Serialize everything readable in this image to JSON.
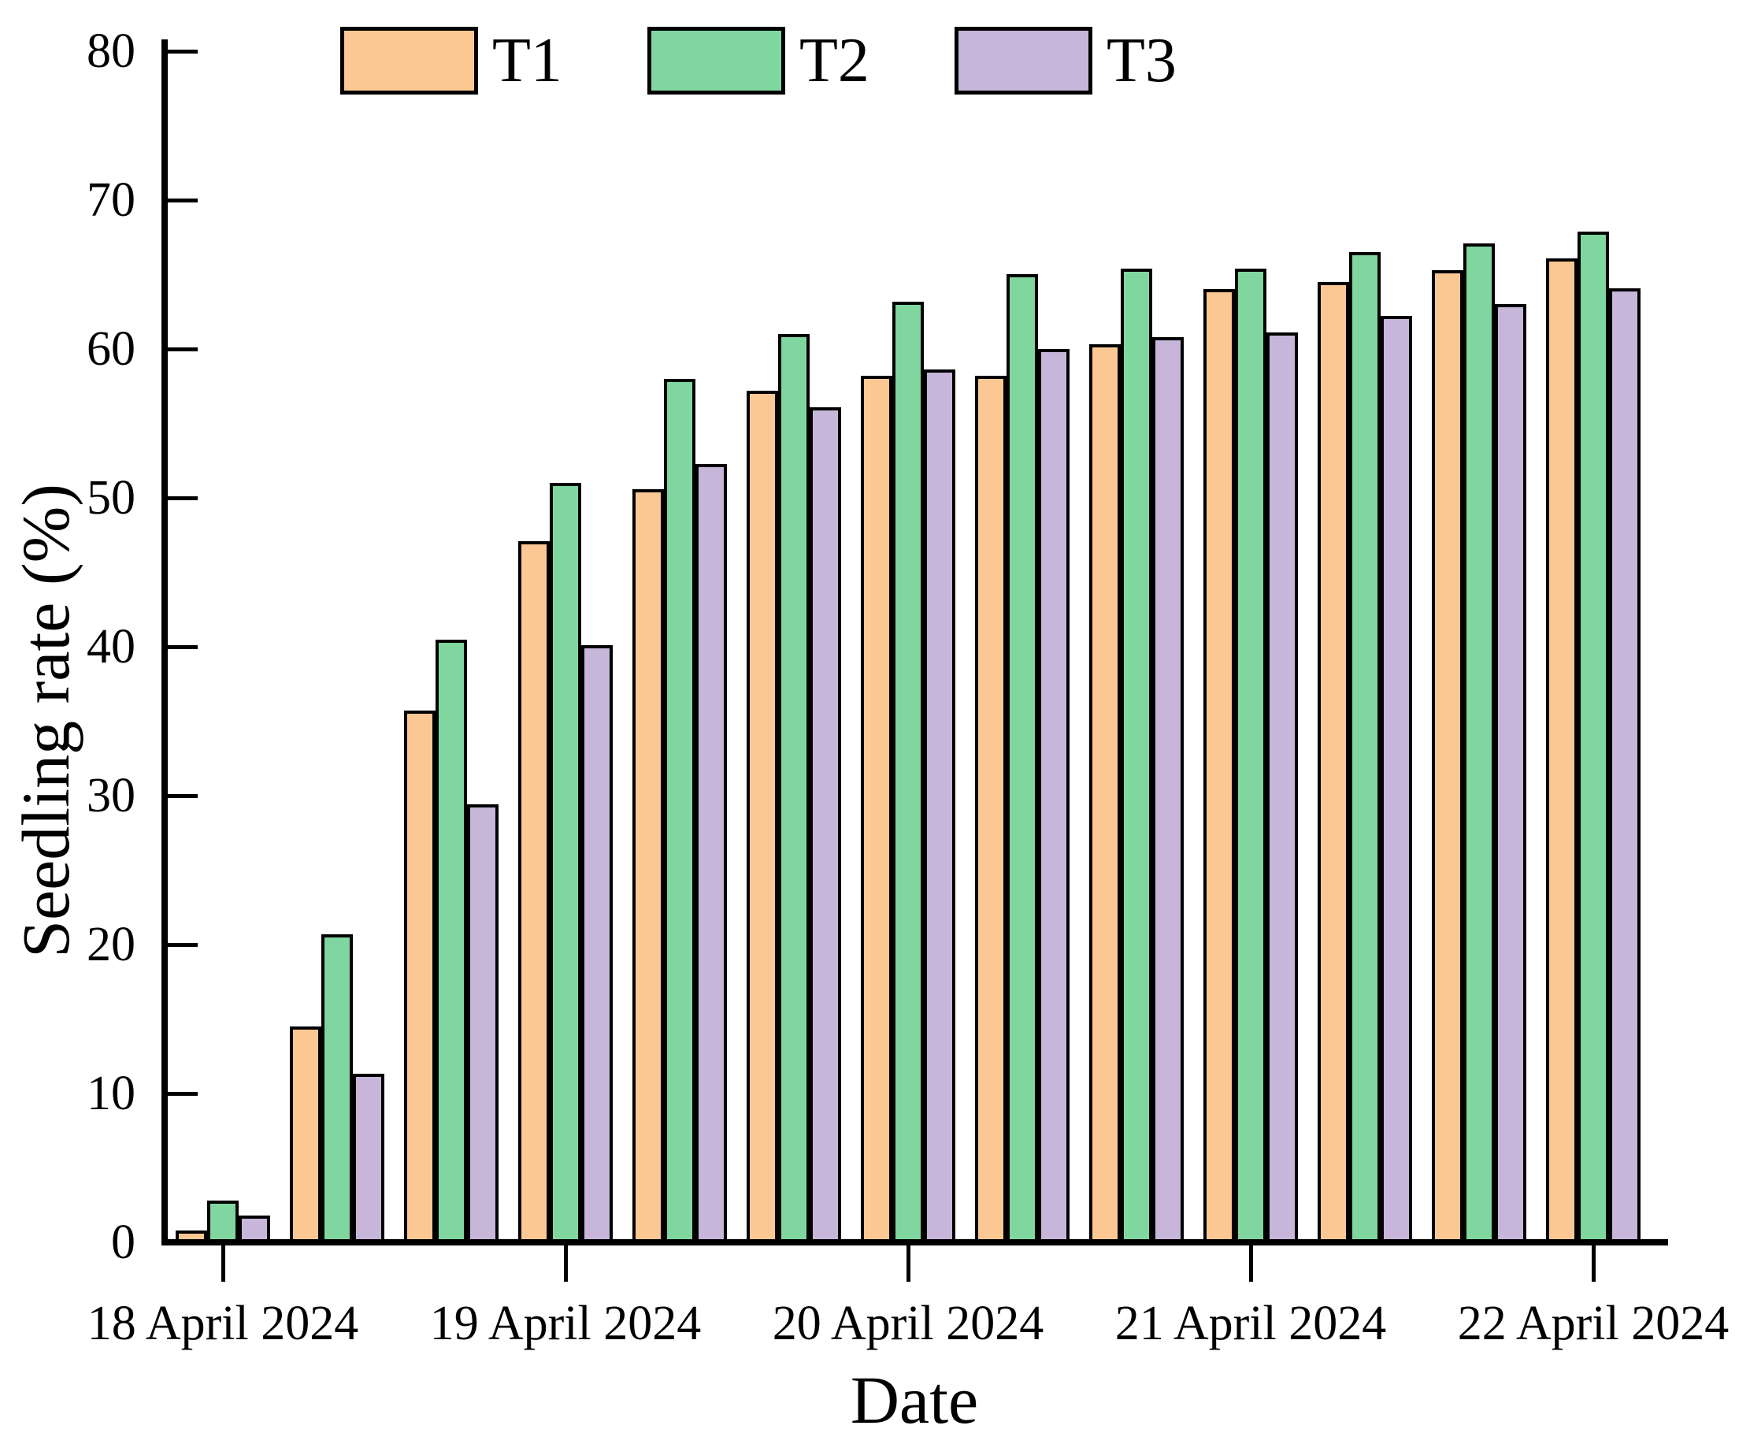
{
  "chart_data": {
    "type": "bar",
    "title": "",
    "xlabel": "Date",
    "ylabel": "Seedling rate (%)",
    "ylim": [
      0,
      80
    ],
    "ytick_step": 10,
    "y_ticks": [
      "0",
      "10",
      "20",
      "30",
      "40",
      "50",
      "60",
      "70",
      "80"
    ],
    "grid": false,
    "legend_position": "top-inside",
    "n_groups": 13,
    "groups_per_day": 3,
    "x_tick_labels": [
      {
        "group_index": 0,
        "label": "18 April 2024"
      },
      {
        "group_index": 3,
        "label": "19 April 2024"
      },
      {
        "group_index": 6,
        "label": "20 April 2024"
      },
      {
        "group_index": 9,
        "label": "21 April 2024"
      },
      {
        "group_index": 12,
        "label": "22 April 2024"
      }
    ],
    "bar_border_color": "#000000",
    "series": [
      {
        "name": "T1",
        "color": "#FBC893",
        "values": [
          0.8,
          14.5,
          35.7,
          47.1,
          50.6,
          57.2,
          58.2,
          58.2,
          60.3,
          64.0,
          64.5,
          65.3,
          66.1
        ]
      },
      {
        "name": "T2",
        "color": "#7FD79F",
        "values": [
          2.8,
          20.7,
          40.5,
          51.0,
          58.0,
          61.0,
          63.2,
          65.0,
          65.4,
          65.4,
          66.5,
          67.1,
          67.9
        ]
      },
      {
        "name": "T3",
        "color": "#C7B6D9",
        "values": [
          1.8,
          11.3,
          29.4,
          40.1,
          52.3,
          56.1,
          58.6,
          60.0,
          60.8,
          61.1,
          62.2,
          63.0,
          64.1
        ]
      }
    ]
  }
}
